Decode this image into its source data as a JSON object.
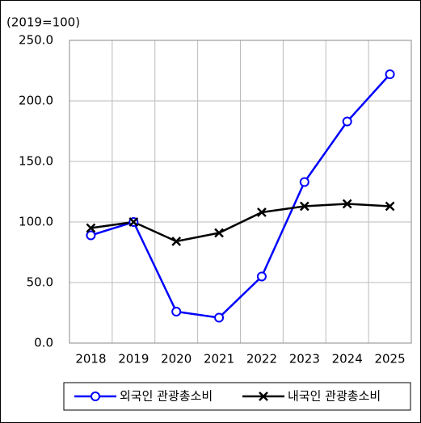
{
  "chart_data": {
    "type": "line",
    "unit_label": "(2019=100)",
    "categories": [
      "2018",
      "2019",
      "2020",
      "2021",
      "2022",
      "2023",
      "2024",
      "2025"
    ],
    "series": [
      {
        "name": "외국인 관광총소비",
        "color": "#0000ff",
        "marker": "circle",
        "values": [
          89,
          100,
          26,
          21,
          55,
          133,
          183,
          222
        ]
      },
      {
        "name": "내국인 관광총소비",
        "color": "#000000",
        "marker": "x",
        "values": [
          95,
          100,
          84,
          91,
          108,
          113,
          115,
          113
        ]
      }
    ],
    "ylim": [
      0,
      250
    ],
    "yticks": [
      {
        "value": 0,
        "label": "0.0"
      },
      {
        "value": 50,
        "label": "50.0"
      },
      {
        "value": 100,
        "label": "100.0"
      },
      {
        "value": 150,
        "label": "150.0"
      },
      {
        "value": 200,
        "label": "200.0"
      },
      {
        "value": 250,
        "label": "250.0"
      }
    ],
    "grid": true,
    "legend": "bottom"
  }
}
